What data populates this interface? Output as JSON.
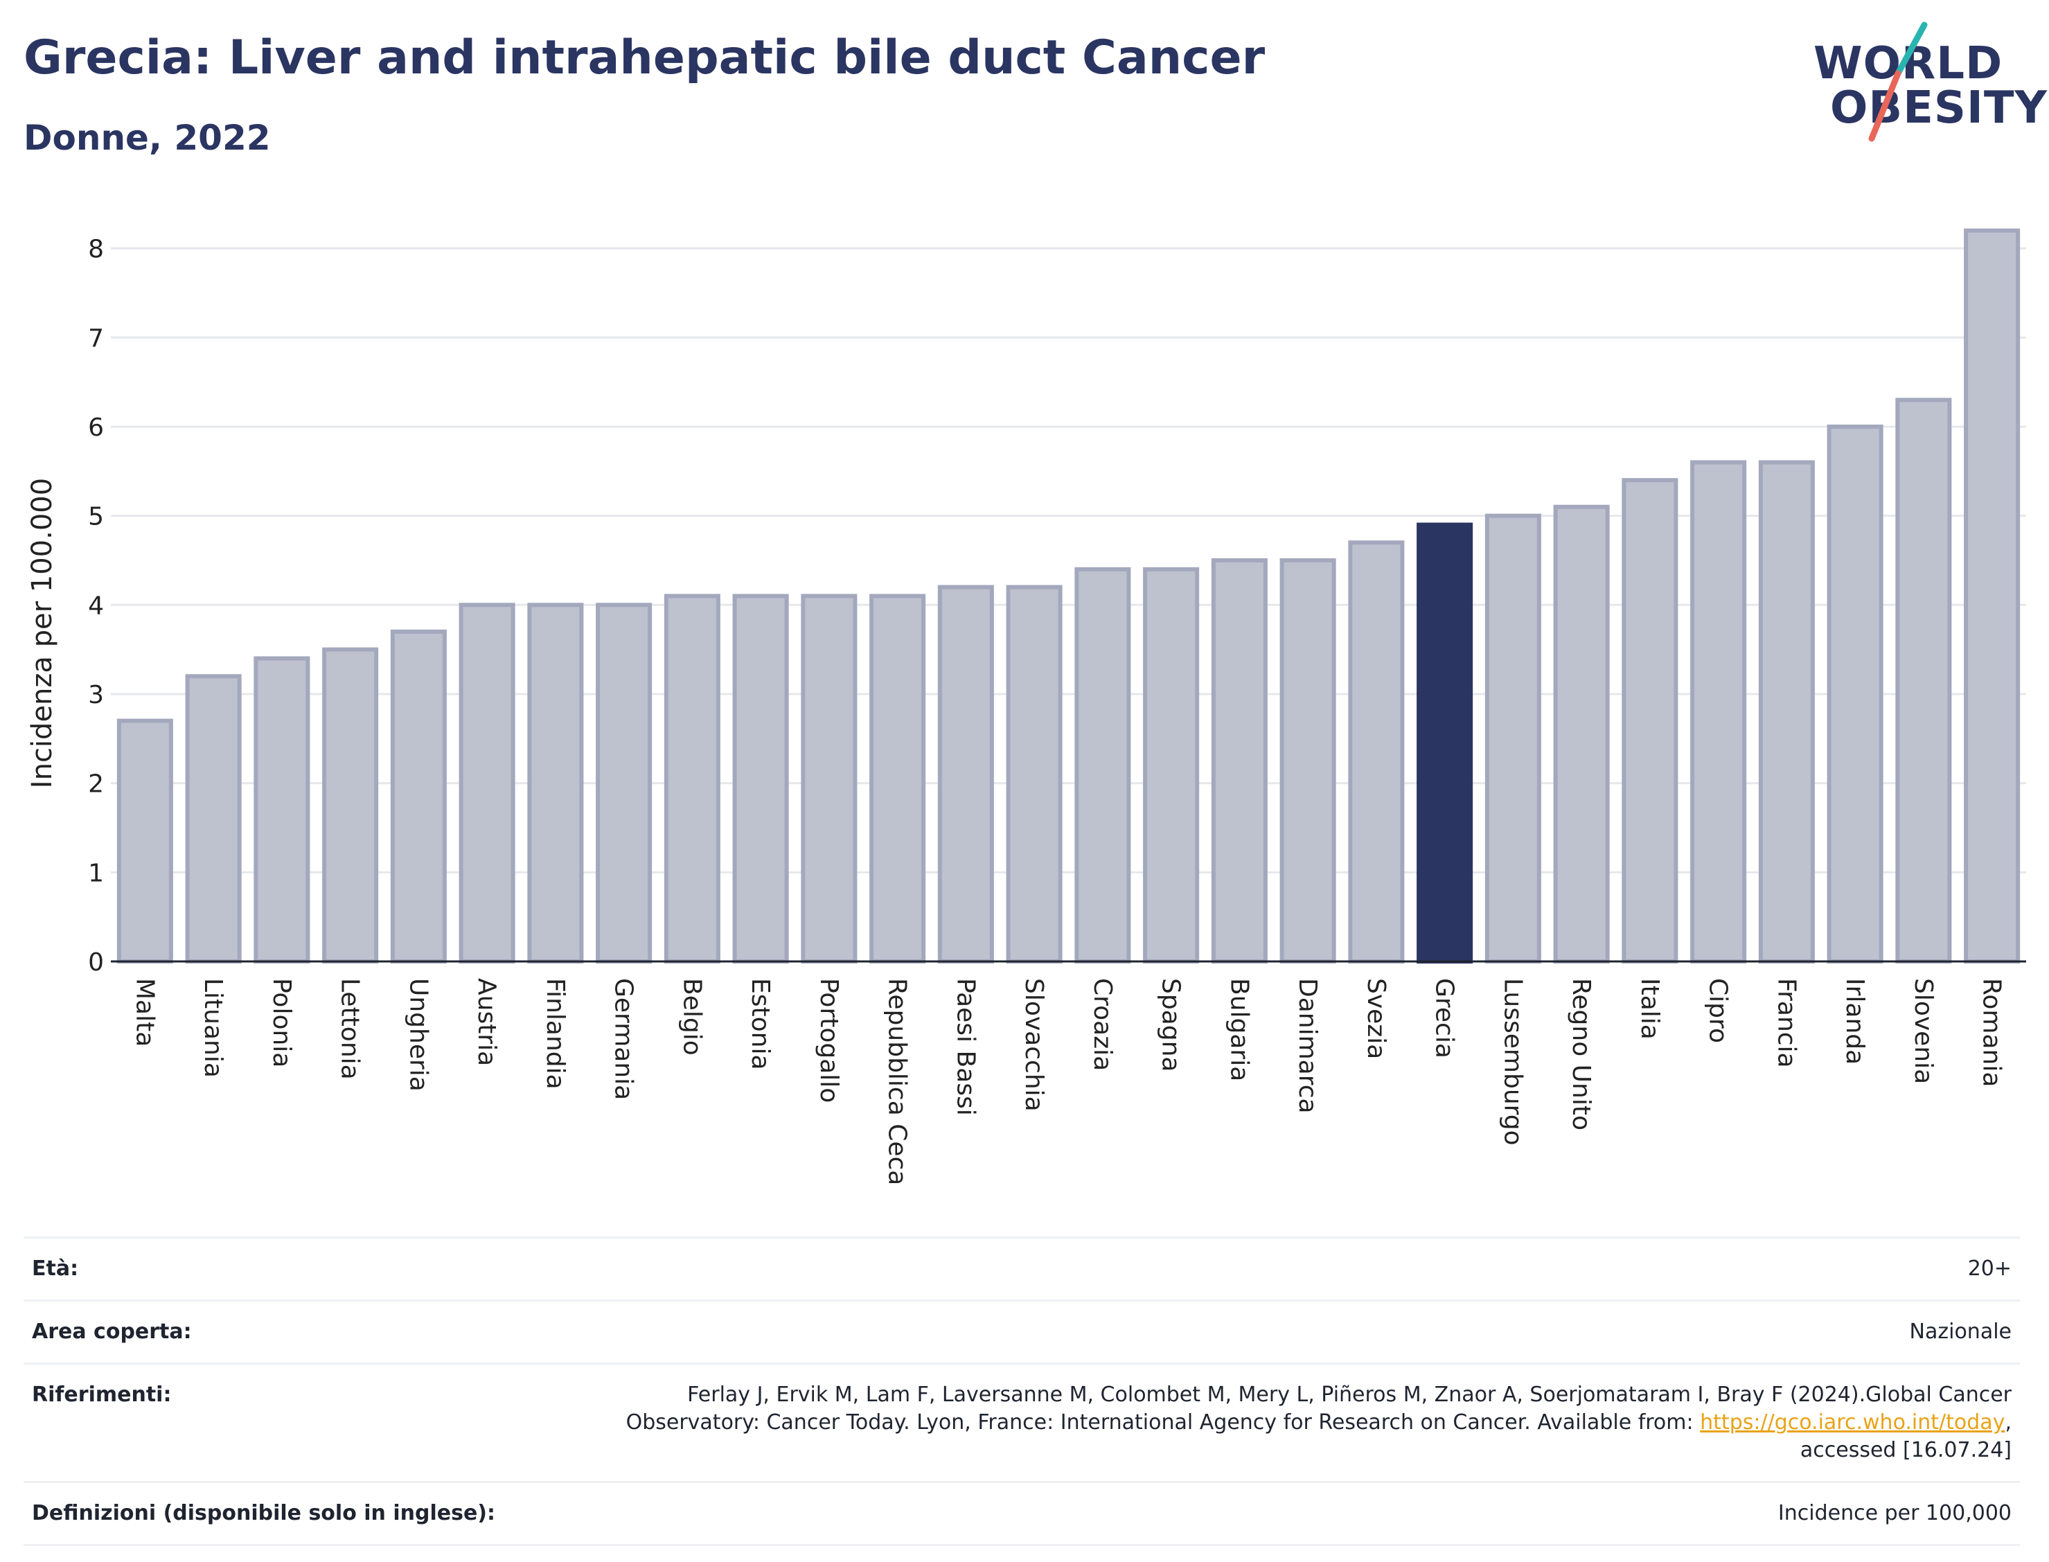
{
  "header": {
    "title": "Grecia: Liver and intrahepatic bile duct Cancer",
    "subtitle": "Donne, 2022"
  },
  "logo": {
    "line1": "WORLD",
    "line2": "OBESITY",
    "text": "WORLD OBESITY"
  },
  "colors": {
    "bar": "#bec1ce",
    "bar_border": "#a3a8bd",
    "highlight": "#2b3562",
    "brand_teal": "#2ab4b0",
    "brand_coral": "#e8675a"
  },
  "chart_data": {
    "type": "bar",
    "title": "Grecia: Liver and intrahepatic bile duct Cancer",
    "subtitle": "Donne, 2022",
    "xlabel": "",
    "ylabel": "Incidenza per 100.000",
    "ylim": [
      0,
      8.3
    ],
    "yticks": [
      0,
      1,
      2,
      3,
      4,
      5,
      6,
      7,
      8
    ],
    "grid": true,
    "highlight": "Grecia",
    "categories": [
      "Malta",
      "Lituania",
      "Polonia",
      "Lettonia",
      "Ungheria",
      "Austria",
      "Finlandia",
      "Germania",
      "Belgio",
      "Estonia",
      "Portogallo",
      "Repubblica Ceca",
      "Paesi Bassi",
      "Slovacchia",
      "Croazia",
      "Spagna",
      "Bulgaria",
      "Danimarca",
      "Svezia",
      "Grecia",
      "Lussemburgo",
      "Regno Unito",
      "Italia",
      "Cipro",
      "Francia",
      "Irlanda",
      "Slovenia",
      "Romania"
    ],
    "values": [
      2.7,
      3.2,
      3.4,
      3.5,
      3.7,
      4.0,
      4.0,
      4.0,
      4.1,
      4.1,
      4.1,
      4.1,
      4.2,
      4.2,
      4.4,
      4.4,
      4.5,
      4.5,
      4.7,
      4.9,
      5.0,
      5.1,
      5.4,
      5.6,
      5.6,
      6.0,
      6.3,
      8.2
    ]
  },
  "meta": {
    "eta_label": "Età:",
    "eta_value": "20+",
    "area_label": "Area coperta:",
    "area_value": "Nazionale",
    "ref_label": "Riferimenti:",
    "ref_text_1": "Ferlay J, Ervik M, Lam F, Laversanne M, Colombet M, Mery L, Piñeros M, Znaor A, Soerjomataram I, Bray F (2024).Global Cancer Observatory: Cancer Today. Lyon, France: International Agency for Research on Cancer. Available from: ",
    "ref_link": "https://gco.iarc.who.int/today",
    "ref_text_2": ", accessed [16.07.24]",
    "def_label": "Definizioni (disponibile solo in inglese):",
    "def_value": "Incidence per 100,000"
  }
}
